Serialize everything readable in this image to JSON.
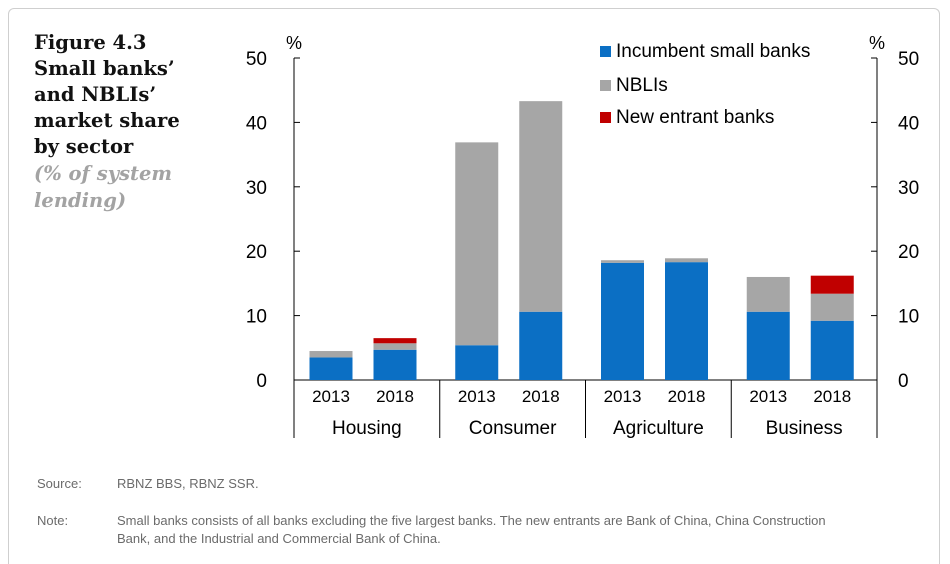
{
  "figure": {
    "title_lines": [
      "Figure 4.3",
      "Small banks’",
      "and NBLIs’",
      "market share",
      "by sector"
    ],
    "subtitle_lines": [
      "(% of system",
      "lending)"
    ]
  },
  "chart_data": {
    "type": "bar",
    "stacked": true,
    "groups": [
      "Housing",
      "Consumer",
      "Agriculture",
      "Business"
    ],
    "categories": [
      "2013",
      "2018",
      "2013",
      "2018",
      "2013",
      "2018",
      "2013",
      "2018"
    ],
    "series": [
      {
        "name": "Incumbent small banks",
        "color": "#0b6fc4",
        "values": [
          3.5,
          4.7,
          5.4,
          10.6,
          18.2,
          18.3,
          10.6,
          9.2
        ]
      },
      {
        "name": "NBLIs",
        "color": "#a6a6a6",
        "values": [
          1.0,
          1.0,
          31.5,
          32.7,
          0.4,
          0.6,
          5.4,
          4.2
        ]
      },
      {
        "name": "New entrant banks",
        "color": "#c00000",
        "values": [
          0,
          0.8,
          0,
          0,
          0,
          0,
          0,
          2.8
        ]
      }
    ],
    "ylim": [
      0,
      50
    ],
    "yticks": [
      0,
      10,
      20,
      30,
      40,
      50
    ],
    "ylabel_left": "%",
    "ylabel_right": "%",
    "grid": false,
    "legend_position": "top-right"
  },
  "footer": {
    "source_label": "Source:",
    "source_text": "RBNZ BBS, RBNZ SSR.",
    "note_label": "Note:",
    "note_text": "Small banks consists of all banks excluding the five largest banks. The new entrants are Bank of China, China Construction Bank, and the Industrial and Commercial Bank of China."
  }
}
